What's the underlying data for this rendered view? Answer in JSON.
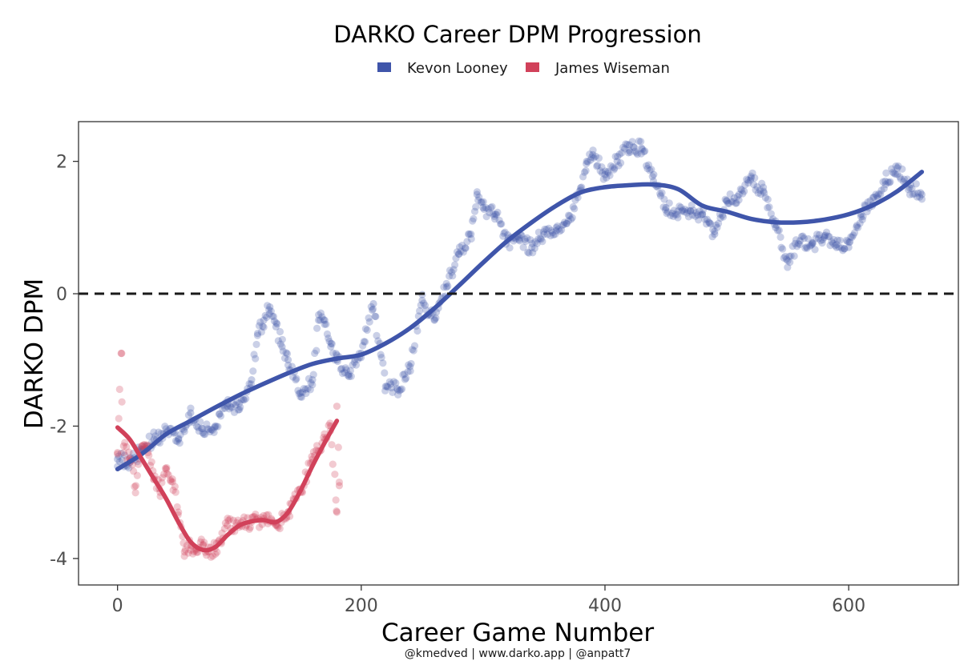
{
  "chart_data": {
    "type": "scatter",
    "title": "DARKO Career DPM Progression",
    "xlabel": "Career Game Number",
    "ylabel": "DARKO DPM",
    "caption": "@kmedved | www.darko.app | @anpatt7",
    "xlim": [
      -32,
      690
    ],
    "ylim": [
      -4.4,
      2.6
    ],
    "x_ticks": [
      0,
      200,
      400,
      600
    ],
    "y_ticks": [
      -4,
      -2,
      0,
      2
    ],
    "reference_line": {
      "y": 0,
      "style": "dashed"
    },
    "legend": {
      "placement": "top"
    },
    "grid": false,
    "series": [
      {
        "name": "Kevon Looney",
        "color": "#3F55AA",
        "trend": [
          [
            0,
            -2.65
          ],
          [
            20,
            -2.42
          ],
          [
            40,
            -2.12
          ],
          [
            60,
            -1.92
          ],
          [
            80,
            -1.72
          ],
          [
            100,
            -1.53
          ],
          [
            120,
            -1.36
          ],
          [
            140,
            -1.2
          ],
          [
            160,
            -1.06
          ],
          [
            180,
            -0.98
          ],
          [
            200,
            -0.92
          ],
          [
            220,
            -0.75
          ],
          [
            240,
            -0.52
          ],
          [
            260,
            -0.22
          ],
          [
            280,
            0.12
          ],
          [
            300,
            0.47
          ],
          [
            320,
            0.8
          ],
          [
            340,
            1.08
          ],
          [
            360,
            1.33
          ],
          [
            380,
            1.53
          ],
          [
            400,
            1.61
          ],
          [
            420,
            1.64
          ],
          [
            440,
            1.65
          ],
          [
            460,
            1.58
          ],
          [
            480,
            1.33
          ],
          [
            500,
            1.24
          ],
          [
            520,
            1.13
          ],
          [
            540,
            1.08
          ],
          [
            560,
            1.08
          ],
          [
            580,
            1.12
          ],
          [
            600,
            1.2
          ],
          [
            620,
            1.34
          ],
          [
            640,
            1.55
          ],
          [
            660,
            1.84
          ]
        ],
        "points_anchor": [
          [
            0,
            -2.5
          ],
          [
            10,
            -2.55
          ],
          [
            20,
            -2.35
          ],
          [
            30,
            -2.2
          ],
          [
            40,
            -2.1
          ],
          [
            50,
            -2.2
          ],
          [
            60,
            -1.8
          ],
          [
            70,
            -2.1
          ],
          [
            80,
            -2.0
          ],
          [
            90,
            -1.7
          ],
          [
            100,
            -1.75
          ],
          [
            110,
            -1.3
          ],
          [
            115,
            -0.6
          ],
          [
            120,
            -0.4
          ],
          [
            125,
            -0.2
          ],
          [
            130,
            -0.5
          ],
          [
            135,
            -0.8
          ],
          [
            140,
            -1.0
          ],
          [
            150,
            -1.5
          ],
          [
            160,
            -1.3
          ],
          [
            165,
            -0.4
          ],
          [
            170,
            -0.4
          ],
          [
            175,
            -0.8
          ],
          [
            180,
            -1.0
          ],
          [
            190,
            -1.25
          ],
          [
            200,
            -0.9
          ],
          [
            210,
            -0.15
          ],
          [
            220,
            -1.4
          ],
          [
            230,
            -1.45
          ],
          [
            240,
            -1.1
          ],
          [
            250,
            -0.1
          ],
          [
            260,
            -0.4
          ],
          [
            270,
            0.1
          ],
          [
            280,
            0.6
          ],
          [
            290,
            0.9
          ],
          [
            295,
            1.5
          ],
          [
            300,
            1.3
          ],
          [
            310,
            1.2
          ],
          [
            320,
            0.8
          ],
          [
            330,
            0.8
          ],
          [
            340,
            0.7
          ],
          [
            350,
            0.9
          ],
          [
            360,
            1.0
          ],
          [
            370,
            1.1
          ],
          [
            380,
            1.6
          ],
          [
            385,
            2.0
          ],
          [
            390,
            2.1
          ],
          [
            400,
            1.8
          ],
          [
            410,
            2.0
          ],
          [
            420,
            2.25
          ],
          [
            430,
            2.2
          ],
          [
            440,
            1.8
          ],
          [
            450,
            1.3
          ],
          [
            460,
            1.25
          ],
          [
            470,
            1.25
          ],
          [
            480,
            1.2
          ],
          [
            490,
            0.9
          ],
          [
            500,
            1.4
          ],
          [
            510,
            1.5
          ],
          [
            520,
            1.75
          ],
          [
            530,
            1.55
          ],
          [
            540,
            1.0
          ],
          [
            550,
            0.5
          ],
          [
            560,
            0.8
          ],
          [
            570,
            0.75
          ],
          [
            580,
            0.85
          ],
          [
            590,
            0.7
          ],
          [
            600,
            0.7
          ],
          [
            610,
            1.2
          ],
          [
            620,
            1.35
          ],
          [
            630,
            1.7
          ],
          [
            640,
            1.9
          ],
          [
            650,
            1.6
          ],
          [
            660,
            1.5
          ]
        ]
      },
      {
        "name": "James Wiseman",
        "color": "#D1415A",
        "trend": [
          [
            0,
            -2.02
          ],
          [
            10,
            -2.2
          ],
          [
            20,
            -2.5
          ],
          [
            30,
            -2.8
          ],
          [
            40,
            -3.1
          ],
          [
            50,
            -3.45
          ],
          [
            60,
            -3.75
          ],
          [
            70,
            -3.87
          ],
          [
            80,
            -3.83
          ],
          [
            90,
            -3.65
          ],
          [
            100,
            -3.5
          ],
          [
            110,
            -3.44
          ],
          [
            120,
            -3.42
          ],
          [
            130,
            -3.45
          ],
          [
            140,
            -3.3
          ],
          [
            150,
            -2.98
          ],
          [
            160,
            -2.6
          ],
          [
            170,
            -2.25
          ],
          [
            180,
            -1.92
          ]
        ],
        "points_anchor": [
          [
            0,
            -2.4
          ],
          [
            3,
            -0.9
          ],
          [
            5,
            -2.3
          ],
          [
            10,
            -2.5
          ],
          [
            15,
            -2.9
          ],
          [
            20,
            -2.3
          ],
          [
            25,
            -2.4
          ],
          [
            30,
            -2.8
          ],
          [
            35,
            -3.0
          ],
          [
            40,
            -2.65
          ],
          [
            45,
            -2.8
          ],
          [
            50,
            -3.3
          ],
          [
            55,
            -3.9
          ],
          [
            60,
            -3.8
          ],
          [
            65,
            -3.85
          ],
          [
            70,
            -3.8
          ],
          [
            75,
            -3.9
          ],
          [
            80,
            -3.85
          ],
          [
            85,
            -3.75
          ],
          [
            90,
            -3.5
          ],
          [
            100,
            -3.5
          ],
          [
            110,
            -3.45
          ],
          [
            120,
            -3.4
          ],
          [
            130,
            -3.5
          ],
          [
            140,
            -3.3
          ],
          [
            150,
            -3.0
          ],
          [
            160,
            -2.5
          ],
          [
            170,
            -2.2
          ],
          [
            175,
            -2.0
          ],
          [
            180,
            -3.3
          ],
          [
            182,
            -2.9
          ],
          [
            180,
            -1.7
          ]
        ]
      }
    ]
  }
}
